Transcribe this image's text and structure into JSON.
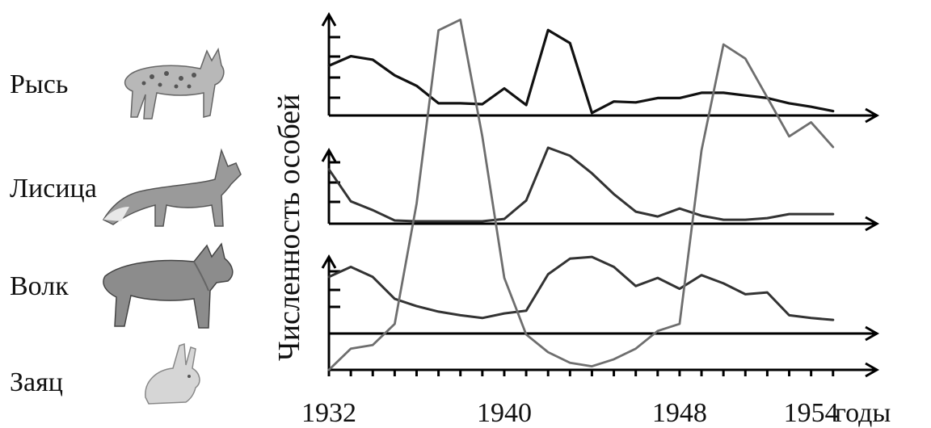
{
  "animals": [
    {
      "label": "Рысь",
      "icon": "lynx-icon"
    },
    {
      "label": "Лисица",
      "icon": "fox-icon"
    },
    {
      "label": "Волк",
      "icon": "wolf-icon"
    },
    {
      "label": "Заяц",
      "icon": "hare-icon"
    }
  ],
  "chart_data": {
    "type": "line",
    "ylabel": "Численность особей",
    "xlabel": "годы",
    "xlim": [
      1932,
      1957
    ],
    "x_ticks": [
      "1932",
      "1940",
      "1948",
      "1954"
    ],
    "grid": false,
    "series": [
      {
        "name": "Рысь",
        "color": "#111111",
        "x": [
          1932,
          1933,
          1934,
          1935,
          1936,
          1937,
          1938,
          1939,
          1940,
          1941,
          1942,
          1943,
          1944,
          1945,
          1946,
          1947,
          1948,
          1949,
          1950,
          1951,
          1952,
          1953,
          1954,
          1955
        ],
        "y": [
          0.57,
          0.68,
          0.64,
          0.46,
          0.34,
          0.14,
          0.14,
          0.13,
          0.31,
          0.12,
          0.98,
          0.83,
          0.03,
          0.16,
          0.15,
          0.2,
          0.2,
          0.26,
          0.26,
          0.23,
          0.2,
          0.14,
          0.1,
          0.05
        ]
      },
      {
        "name": "Лисица",
        "color": "#333333",
        "x": [
          1932,
          1933,
          1934,
          1935,
          1936,
          1937,
          1938,
          1939,
          1940,
          1941,
          1942,
          1943,
          1944,
          1945,
          1946,
          1947,
          1948,
          1949,
          1950,
          1951,
          1952,
          1953,
          1954,
          1955
        ],
        "y": [
          0.68,
          0.28,
          0.17,
          0.04,
          0.03,
          0.03,
          0.03,
          0.03,
          0.06,
          0.29,
          0.95,
          0.85,
          0.63,
          0.37,
          0.15,
          0.09,
          0.19,
          0.1,
          0.05,
          0.05,
          0.07,
          0.12,
          0.12,
          0.12
        ]
      },
      {
        "name": "Волк",
        "color": "#333333",
        "x": [
          1932,
          1933,
          1934,
          1935,
          1936,
          1937,
          1938,
          1939,
          1940,
          1941,
          1942,
          1943,
          1944,
          1945,
          1946,
          1947,
          1948,
          1949,
          1950,
          1951,
          1952,
          1953,
          1954,
          1955
        ],
        "y": [
          0.62,
          0.73,
          0.62,
          0.38,
          0.3,
          0.24,
          0.2,
          0.17,
          0.22,
          0.25,
          0.65,
          0.82,
          0.84,
          0.73,
          0.52,
          0.61,
          0.49,
          0.64,
          0.55,
          0.43,
          0.45,
          0.2,
          0.17,
          0.15
        ]
      },
      {
        "name": "Заяц",
        "color": "#6e6e6e",
        "x": [
          1932,
          1933,
          1934,
          1935,
          1936,
          1937,
          1938,
          1939,
          1940,
          1941,
          1942,
          1943,
          1944,
          1945,
          1946,
          1947,
          1948,
          1949,
          1950,
          1951,
          1952,
          1953,
          1954,
          1955
        ],
        "y": [
          0.0,
          0.06,
          0.07,
          0.13,
          0.47,
          0.96,
          0.99,
          0.66,
          0.26,
          0.1,
          0.05,
          0.02,
          0.01,
          0.03,
          0.06,
          0.11,
          0.13,
          0.62,
          0.92,
          0.88,
          0.77,
          0.66,
          0.7,
          0.63
        ]
      }
    ]
  }
}
